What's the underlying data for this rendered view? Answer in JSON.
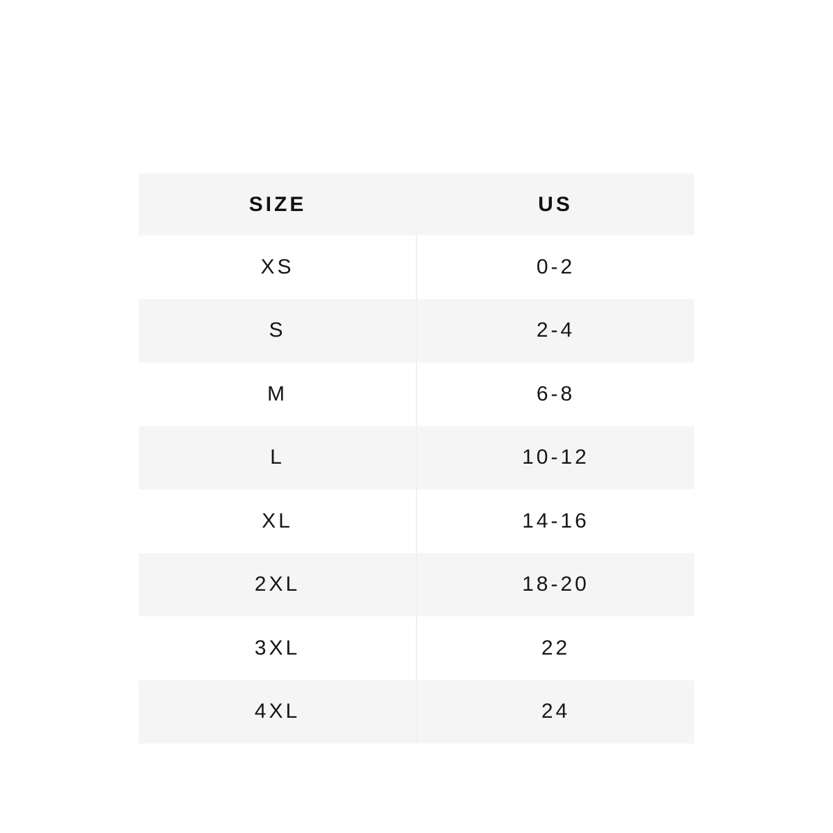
{
  "chart_data": {
    "type": "table",
    "title": "",
    "columns": [
      "SIZE",
      "US"
    ],
    "rows": [
      [
        "XS",
        "0-2"
      ],
      [
        "S",
        "2-4"
      ],
      [
        "M",
        "6-8"
      ],
      [
        "L",
        "10-12"
      ],
      [
        "XL",
        "14-16"
      ],
      [
        "2XL",
        "18-20"
      ],
      [
        "3XL",
        "22"
      ],
      [
        "4XL",
        "24"
      ]
    ],
    "layout": {
      "page_bg": "#ffffff",
      "header_bg": "#f5f5f5",
      "row_odd_bg": "#ffffff",
      "row_even_bg": "#f5f5f5",
      "text_color": "#161616",
      "header_text_color": "#111111",
      "divider_color": "#f0f0f0",
      "grid": "off",
      "legend": "none"
    }
  }
}
